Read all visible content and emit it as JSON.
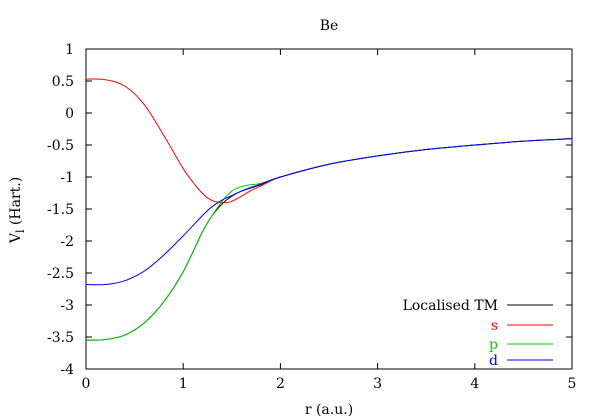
{
  "chart_data": {
    "type": "line",
    "title": "Be",
    "xlabel": "r (a.u.)",
    "ylabel_main": "V",
    "ylabel_sub": "l",
    "ylabel_unit": " (Hart.)",
    "xlim": [
      0,
      5
    ],
    "ylim": [
      -4,
      1
    ],
    "x_ticks": [
      0,
      1,
      2,
      3,
      4,
      5
    ],
    "x_tick_labels": [
      "0",
      "1",
      "2",
      "3",
      "4",
      "5"
    ],
    "y_ticks": [
      -4,
      -3.5,
      -3,
      -2.5,
      -2,
      -1.5,
      -1,
      -0.5,
      0,
      0.5,
      1
    ],
    "y_tick_labels": [
      "-4",
      "-3.5",
      "-3",
      "-2.5",
      "-2",
      "-1.5",
      "-1",
      "-0.5",
      "0",
      "0.5",
      "1"
    ],
    "grid": false,
    "legend_position": "bottom-right",
    "series": [
      {
        "name": "Localised TM",
        "color": "#000000",
        "x": [
          0,
          0.2,
          0.4,
          0.6,
          0.8,
          1.0,
          1.2,
          1.3,
          1.4,
          1.5,
          1.6,
          1.8,
          2.0,
          2.5,
          3.0,
          3.5,
          4.0,
          4.5,
          5.0
        ],
        "y": [
          -3.55,
          -3.54,
          -3.47,
          -3.28,
          -2.95,
          -2.48,
          -1.85,
          -1.6,
          -1.42,
          -1.3,
          -1.22,
          -1.12,
          -1.0,
          -0.8,
          -0.67,
          -0.57,
          -0.5,
          -0.44,
          -0.4
        ]
      },
      {
        "name": "s",
        "color": "#ff0000",
        "x": [
          0,
          0.2,
          0.4,
          0.6,
          0.8,
          1.0,
          1.1,
          1.2,
          1.3,
          1.4,
          1.45,
          1.5,
          1.6,
          1.7,
          1.8,
          2.0,
          2.5,
          3.0,
          3.5,
          4.0,
          4.5,
          5.0
        ],
        "y": [
          0.53,
          0.52,
          0.42,
          0.13,
          -0.35,
          -0.87,
          -1.08,
          -1.26,
          -1.37,
          -1.4,
          -1.4,
          -1.38,
          -1.3,
          -1.21,
          -1.14,
          -1.0,
          -0.8,
          -0.67,
          -0.57,
          -0.5,
          -0.44,
          -0.4
        ]
      },
      {
        "name": "p",
        "color": "#00cc00",
        "x": [
          0,
          0.2,
          0.4,
          0.6,
          0.8,
          1.0,
          1.2,
          1.3,
          1.4,
          1.5,
          1.6,
          1.7,
          1.8,
          2.0,
          2.5,
          3.0,
          3.5,
          4.0,
          4.5,
          5.0
        ],
        "y": [
          -3.55,
          -3.54,
          -3.47,
          -3.28,
          -2.95,
          -2.48,
          -1.85,
          -1.6,
          -1.38,
          -1.22,
          -1.15,
          -1.12,
          -1.1,
          -1.0,
          -0.8,
          -0.67,
          -0.57,
          -0.5,
          -0.44,
          -0.4
        ]
      },
      {
        "name": "d",
        "color": "#0000ff",
        "x": [
          0,
          0.2,
          0.4,
          0.6,
          0.8,
          1.0,
          1.2,
          1.3,
          1.4,
          1.5,
          1.6,
          1.7,
          1.8,
          2.0,
          2.5,
          3.0,
          3.5,
          4.0,
          4.5,
          5.0
        ],
        "y": [
          -2.68,
          -2.68,
          -2.62,
          -2.47,
          -2.22,
          -1.92,
          -1.6,
          -1.46,
          -1.36,
          -1.29,
          -1.22,
          -1.16,
          -1.11,
          -1.0,
          -0.8,
          -0.67,
          -0.57,
          -0.5,
          -0.44,
          -0.4
        ]
      }
    ]
  }
}
